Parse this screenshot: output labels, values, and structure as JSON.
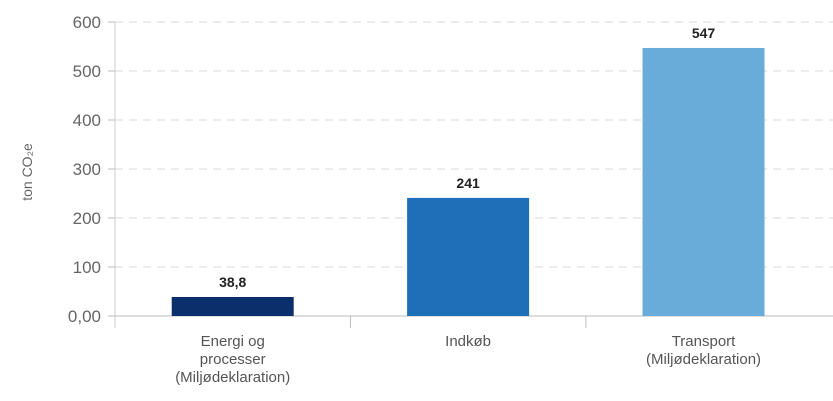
{
  "chart_data": {
    "type": "bar",
    "title": "",
    "xlabel": "",
    "ylabel": "ton CO₂e",
    "ylim": [
      0,
      600
    ],
    "yticks": [
      0,
      100,
      200,
      300,
      400,
      500,
      600
    ],
    "ytick_labels": [
      "0,00",
      "100",
      "200",
      "300",
      "400",
      "500",
      "600"
    ],
    "grid": true,
    "legend": "none",
    "categories": [
      [
        "Energi og",
        "processer",
        "(Miljødeklaration)"
      ],
      [
        "Indkøb"
      ],
      [
        "Transport",
        "(Miljødeklaration)"
      ]
    ],
    "values": [
      38.8,
      241,
      547
    ],
    "data_labels": [
      "38,8",
      "241",
      "547"
    ],
    "colors": [
      "#0b2f6b",
      "#1f6fb8",
      "#69acd9"
    ]
  }
}
